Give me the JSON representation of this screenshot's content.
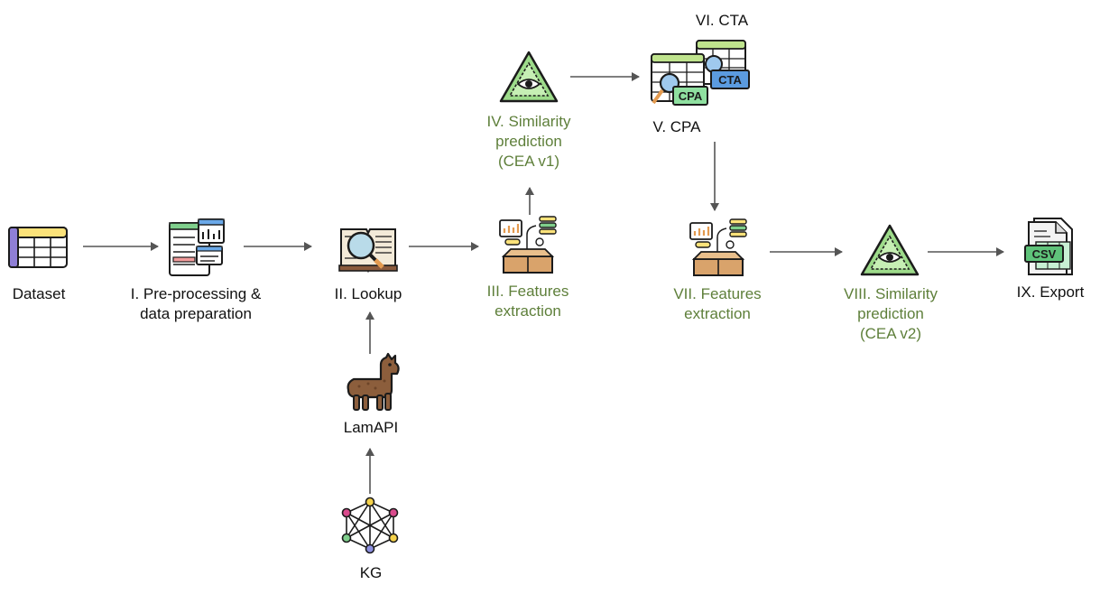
{
  "colors": {
    "text": "#111111",
    "ml_text": "#5e7f3a",
    "arrow": "#555555"
  },
  "nodes": {
    "dataset": {
      "lines": [
        "Dataset"
      ],
      "icon": "table-icon"
    },
    "preprocessing": {
      "lines": [
        "I. Pre-processing &",
        "data preparation"
      ],
      "icon": "data-preparation-icon"
    },
    "lookup": {
      "lines": [
        "II. Lookup"
      ],
      "icon": "book-magnifier-icon"
    },
    "features1": {
      "lines": [
        "III. Features",
        "extraction"
      ],
      "icon": "features-box-icon"
    },
    "similarity1": {
      "lines": [
        "IV. Similarity",
        "prediction",
        "(CEA v1)"
      ],
      "icon": "ai-eye-triangle-icon"
    },
    "cpa": {
      "lines": [
        "V. CPA"
      ],
      "icon": "cpa-table-icon",
      "badge": "CPA"
    },
    "cta": {
      "lines": [
        "VI. CTA"
      ],
      "icon": "cta-table-icon",
      "badge": "CTA"
    },
    "features2": {
      "lines": [
        "VII. Features",
        "extraction"
      ],
      "icon": "features-box-icon"
    },
    "similarity2": {
      "lines": [
        "VIII. Similarity",
        "prediction",
        "(CEA v2)"
      ],
      "icon": "ai-eye-triangle-icon"
    },
    "export": {
      "lines": [
        "IX. Export"
      ],
      "icon": "csv-file-icon",
      "badge": "CSV"
    },
    "lamapi": {
      "lines": [
        "LamAPI"
      ],
      "icon": "llama-icon"
    },
    "kg": {
      "lines": [
        "KG"
      ],
      "icon": "graph-network-icon"
    }
  }
}
